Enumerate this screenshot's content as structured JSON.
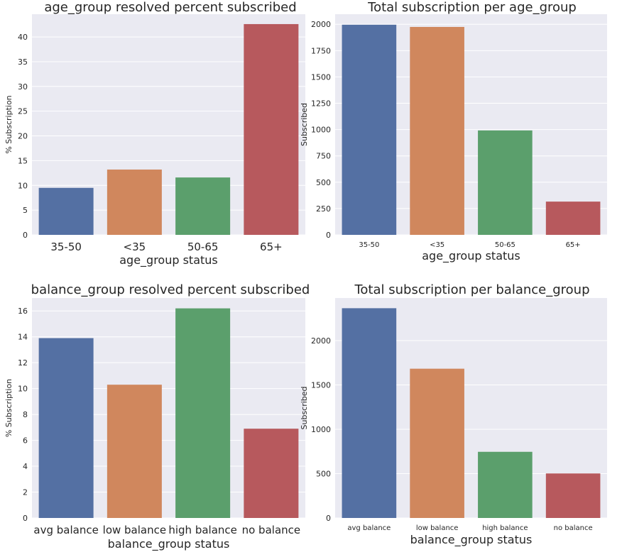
{
  "chart_data": [
    {
      "type": "bar",
      "title": "age_group resolved percent subscribed",
      "xlabel": "age_group status",
      "ylabel": "% Subscription",
      "categories": [
        "35-50",
        "<35",
        "50-65",
        "65+"
      ],
      "values": [
        9.5,
        13.2,
        11.6,
        42.6
      ],
      "ylim": [
        0,
        44.6
      ],
      "yticks": [
        0,
        5,
        10,
        15,
        20,
        25,
        30,
        35,
        40
      ],
      "colors": [
        "#5470a3",
        "#d0875d",
        "#5b9f6c",
        "#b7595d"
      ],
      "grid": true,
      "legend": "none"
    },
    {
      "type": "bar",
      "title": "Total subscription per age_group",
      "xlabel": "age_group status",
      "ylabel": "Subscribed",
      "categories": [
        "35-50",
        "<35",
        "50-65",
        "65+"
      ],
      "values": [
        1996,
        1975,
        992,
        316
      ],
      "ylim": [
        0,
        2096
      ],
      "yticks": [
        0,
        250,
        500,
        750,
        1000,
        1250,
        1500,
        1750,
        2000
      ],
      "colors": [
        "#5470a3",
        "#d0875d",
        "#5b9f6c",
        "#b7595d"
      ],
      "grid": true,
      "legend": "none"
    },
    {
      "type": "bar",
      "title": "balance_group resolved percent subscribed",
      "xlabel": "balance_group status",
      "ylabel": "% Subscription",
      "categories": [
        "avg balance",
        "low balance",
        "high balance",
        "no balance"
      ],
      "values": [
        13.9,
        10.3,
        16.2,
        6.9
      ],
      "ylim": [
        0,
        17.0
      ],
      "yticks": [
        0,
        2,
        4,
        6,
        8,
        10,
        12,
        14,
        16
      ],
      "colors": [
        "#5470a3",
        "#d0875d",
        "#5b9f6c",
        "#b7595d"
      ],
      "grid": true,
      "legend": "none"
    },
    {
      "type": "bar",
      "title": "Total subscription per balance_group",
      "xlabel": "balance_group status",
      "ylabel": "Subscribed",
      "categories": [
        "avg balance",
        "low balance",
        "high balance",
        "no balance"
      ],
      "values": [
        2365,
        1683,
        746,
        502
      ],
      "ylim": [
        0,
        2480
      ],
      "yticks": [
        0,
        500,
        1000,
        1500,
        2000
      ],
      "colors": [
        "#5470a3",
        "#d0875d",
        "#5b9f6c",
        "#b7595d"
      ],
      "grid": true,
      "legend": "none"
    }
  ],
  "style": {
    "axes_background": "#eaeaf2",
    "grid_color": "#ffffff",
    "text_color": "#262626"
  }
}
